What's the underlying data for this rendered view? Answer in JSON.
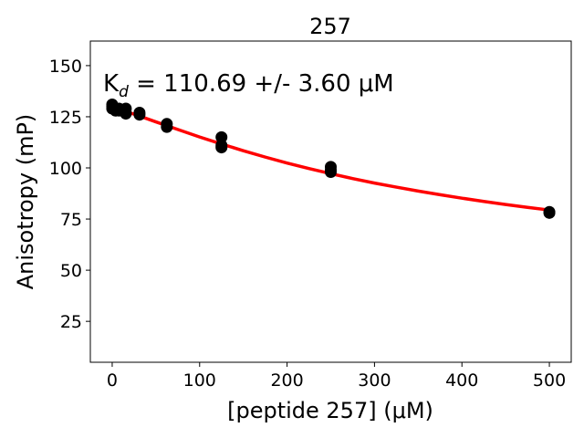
{
  "chart_data": {
    "type": "scatter",
    "title": "257",
    "xlabel": "[peptide 257] (μM)",
    "ylabel": "Anisotropy (mP)",
    "annotation": "K_d = 110.69 +/- 3.60 μM",
    "annotation_parts": {
      "main": "K",
      "sub": "d",
      "rest": " = 110.69 +/- 3.60 μM"
    },
    "xlim": [
      -25,
      525
    ],
    "ylim": [
      5,
      162
    ],
    "x_ticks": [
      0,
      100,
      200,
      300,
      400,
      500
    ],
    "y_ticks": [
      25,
      50,
      75,
      100,
      125,
      150
    ],
    "grid": false,
    "point_color": "#000000",
    "fit_color": "#ff0000",
    "series": [
      {
        "kind": "points",
        "x": [
          0,
          0,
          0,
          3.9,
          3.9,
          7.8,
          7.8,
          15.6,
          15.6,
          15.6,
          31.25,
          31.25,
          62.5,
          62.5,
          125,
          125,
          125,
          250,
          250,
          250,
          500,
          500
        ],
        "y": [
          131,
          130,
          129,
          129,
          128,
          129,
          128,
          129,
          127,
          126.5,
          127,
          126,
          121.5,
          120,
          115,
          111,
          110,
          100.5,
          99,
          98,
          78.5,
          78
        ]
      },
      {
        "kind": "fit",
        "x": [
          0,
          25,
          50,
          75,
          100,
          125,
          150,
          175,
          200,
          225,
          250,
          275,
          300,
          325,
          350,
          375,
          400,
          425,
          450,
          475,
          500
        ],
        "y": [
          129.3,
          126.3,
          122.5,
          118.8,
          115.1,
          111.7,
          108.4,
          105.3,
          102.4,
          99.7,
          97.2,
          94.8,
          92.6,
          90.6,
          88.7,
          86.9,
          85.2,
          83.6,
          82.1,
          80.7,
          79.4
        ]
      }
    ]
  }
}
